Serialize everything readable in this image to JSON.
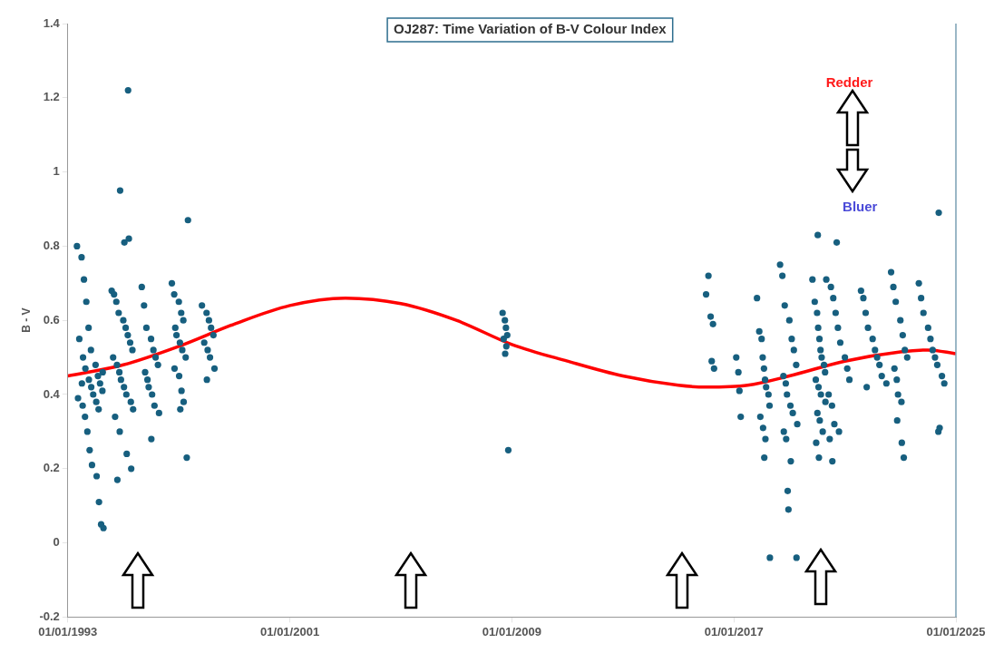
{
  "chart_data": {
    "type": "scatter",
    "title": "OJ287: Time Variation of B-V Colour Index",
    "ylabel": "B - V",
    "xlim": [
      "1993-01-01",
      "2025-01-01"
    ],
    "xticks": [
      {
        "value": "1993-01-01",
        "label": "01/01/1993"
      },
      {
        "value": "2001-01-01",
        "label": "01/01/2001"
      },
      {
        "value": "2009-01-01",
        "label": "01/01/2009"
      },
      {
        "value": "2017-01-01",
        "label": "01/01/2017"
      },
      {
        "value": "2025-01-01",
        "label": "01/01/2025"
      }
    ],
    "ylim": [
      -0.2,
      1.4
    ],
    "yticks": [
      -0.2,
      0,
      0.2,
      0.4,
      0.6,
      0.8,
      1,
      1.2,
      1.4
    ],
    "grid": false,
    "legend": false,
    "marker": "circle",
    "annotations": [
      "Redder",
      "Bluer"
    ],
    "series": [
      {
        "type": "scatter",
        "color": "#175f7f",
        "x": [
          "1993-05",
          "1993-07",
          "1993-08",
          "1993-09",
          "1993-10",
          "1993-11",
          "1994-01",
          "1994-02",
          "1994-03",
          "1994-04",
          "1993-05-15",
          "1993-07-15",
          "1993-08-15",
          "1993-09-15",
          "1993-10-15",
          "1993-11-15",
          "1994-01-15",
          "1994-02-15",
          "1994-03-15",
          "1994-04-15",
          "1993-06",
          "1993-07-20",
          "1993-08-20",
          "1993-10-05",
          "1993-11-05",
          "1993-12",
          "1994-01-10",
          "1994-02-10",
          "1994-04-05",
          "1993-07-05",
          "1994-08",
          "1994-09",
          "1994-10",
          "1994-11",
          "1995-01",
          "1995-02",
          "1995-03",
          "1995-04",
          "1995-05",
          "1994-08-20",
          "1994-10-10",
          "1994-11-10",
          "1994-12",
          "1995-01-10",
          "1995-02-10",
          "1995-04-10",
          "1995-05-10",
          "1994-09-15",
          "1994-11-15",
          "1995-02-15",
          "1995-04-15",
          "1994-10-15",
          "1995-01-15",
          "1995-03-15",
          "1995-03-05",
          "1994-11-20",
          "1995-09",
          "1995-10",
          "1995-11",
          "1996-01",
          "1996-02",
          "1996-03",
          "1996-04",
          "1995-10-15",
          "1995-11-15",
          "1995-12",
          "1996-01-15",
          "1996-02-15",
          "1996-04-15",
          "1996-01-05",
          "1996-10",
          "1996-11",
          "1997-01",
          "1997-02",
          "1997-03",
          "1996-11-15",
          "1996-12",
          "1997-01-15",
          "1997-02-15",
          "1997-04",
          "1996-11-05",
          "1997-01-05",
          "1997-02-05",
          "1997-03-05",
          "1997-01-20",
          "1997-04-15",
          "1997-05",
          "1997-11",
          "1998-01",
          "1998-02",
          "1998-03",
          "1998-04",
          "1997-12",
          "1998-01-15",
          "1998-02-15",
          "1998-04-15",
          "1998-01-05",
          "2008-09",
          "2008-10",
          "2008-10-15",
          "2008-11",
          "2008-09-15",
          "2008-10-20",
          "2008-10-05",
          "2008-11-15",
          "2016-01",
          "2016-02",
          "2016-03",
          "2016-04",
          "2016-03-15",
          "2016-04-15",
          "2017-02",
          "2017-03",
          "2017-03-15",
          "2017-04",
          "2017-11",
          "2017-12",
          "2018-01",
          "2018-01-15",
          "2018-02",
          "2018-02-15",
          "2018-03",
          "2018-04",
          "2018-04-15",
          "2017-12-15",
          "2018-01-20",
          "2018-02-20",
          "2018-02-05",
          "2018-04-20",
          "2018-09",
          "2018-10",
          "2018-11",
          "2019-01",
          "2019-02",
          "2019-03",
          "2019-04",
          "2018-10-15",
          "2018-11-15",
          "2018-12",
          "2019-01-15",
          "2019-02-15",
          "2019-04-15",
          "2018-10-20",
          "2018-11-20",
          "2019-01-20",
          "2018-12-10",
          "2018-12-20",
          "2019-04-05",
          "2019-11",
          "2019-12",
          "2020-01",
          "2020-01-15",
          "2020-02",
          "2020-02-15",
          "2020-03",
          "2020-04",
          "2020-04-15",
          "2019-12-15",
          "2020-01-20",
          "2020-02-20",
          "2020-04-20",
          "2020-01-05",
          "2020-02-05",
          "2020-03-15",
          "2020-01-10",
          "2019-12-20",
          "2020-01-25",
          "2020-05",
          "2020-07",
          "2020-08",
          "2020-09",
          "2020-10",
          "2020-11",
          "2021-01",
          "2021-02",
          "2021-03",
          "2020-06",
          "2020-07-15",
          "2020-08-15",
          "2020-10-15",
          "2020-09-15",
          "2020-07-20",
          "2020-06-15",
          "2021-08",
          "2021-09",
          "2021-10",
          "2021-11",
          "2022-01",
          "2022-02",
          "2022-03",
          "2022-04",
          "2022-05",
          "2022-07",
          "2021-10-15",
          "2022-09",
          "2022-10",
          "2022-11",
          "2023-01",
          "2023-02",
          "2023-03",
          "2023-04",
          "2022-10-15",
          "2022-11-15",
          "2022-12",
          "2023-01-15",
          "2022-11-20",
          "2023-01-20",
          "2023-02-15",
          "2023-09",
          "2023-10",
          "2023-11",
          "2024-01",
          "2024-02",
          "2024-03",
          "2024-04",
          "2024-05",
          "2024-07",
          "2024-08",
          "2024-05-15",
          "2024-06",
          "2024-05-20"
        ],
        "values": [
          0.8,
          0.77,
          0.71,
          0.65,
          0.58,
          0.52,
          0.48,
          0.45,
          0.43,
          0.41,
          0.39,
          0.37,
          0.34,
          0.3,
          0.25,
          0.21,
          0.18,
          0.11,
          0.05,
          0.04,
          0.55,
          0.5,
          0.47,
          0.44,
          0.42,
          0.4,
          0.38,
          0.36,
          0.46,
          0.43,
          0.68,
          0.67,
          0.65,
          0.62,
          0.6,
          0.58,
          0.56,
          0.54,
          0.52,
          0.5,
          0.48,
          0.46,
          0.44,
          0.42,
          0.4,
          0.38,
          0.36,
          0.34,
          0.3,
          0.24,
          0.2,
          0.17,
          0.81,
          0.82,
          1.22,
          0.95,
          0.69,
          0.64,
          0.58,
          0.55,
          0.52,
          0.5,
          0.48,
          0.46,
          0.44,
          0.42,
          0.4,
          0.37,
          0.35,
          0.28,
          0.7,
          0.67,
          0.65,
          0.62,
          0.6,
          0.58,
          0.56,
          0.54,
          0.52,
          0.5,
          0.47,
          0.45,
          0.41,
          0.38,
          0.36,
          0.23,
          0.87,
          0.64,
          0.62,
          0.6,
          0.58,
          0.56,
          0.54,
          0.52,
          0.5,
          0.47,
          0.44,
          0.62,
          0.6,
          0.58,
          0.56,
          0.55,
          0.53,
          0.51,
          0.25,
          0.67,
          0.72,
          0.61,
          0.59,
          0.49,
          0.47,
          0.5,
          0.46,
          0.41,
          0.34,
          0.66,
          0.57,
          0.55,
          0.5,
          0.47,
          0.44,
          0.42,
          0.4,
          0.37,
          0.34,
          0.31,
          0.28,
          0.23,
          -0.04,
          0.75,
          0.72,
          0.64,
          0.6,
          0.55,
          0.52,
          0.48,
          0.45,
          0.43,
          0.4,
          0.37,
          0.35,
          0.32,
          0.3,
          0.28,
          0.22,
          0.14,
          0.09,
          -0.04,
          0.71,
          0.65,
          0.62,
          0.58,
          0.55,
          0.52,
          0.5,
          0.48,
          0.46,
          0.44,
          0.42,
          0.4,
          0.38,
          0.35,
          0.33,
          0.3,
          0.83,
          0.27,
          0.23,
          0.71,
          0.69,
          0.66,
          0.62,
          0.58,
          0.54,
          0.5,
          0.47,
          0.44,
          0.4,
          0.37,
          0.32,
          0.3,
          0.81,
          0.22,
          0.28,
          0.68,
          0.66,
          0.62,
          0.58,
          0.55,
          0.52,
          0.5,
          0.48,
          0.45,
          0.43,
          0.42,
          0.73,
          0.69,
          0.65,
          0.6,
          0.56,
          0.52,
          0.5,
          0.47,
          0.44,
          0.4,
          0.38,
          0.33,
          0.27,
          0.23,
          0.7,
          0.66,
          0.62,
          0.58,
          0.55,
          0.52,
          0.5,
          0.48,
          0.45,
          0.43,
          0.3,
          0.31,
          0.89
        ]
      },
      {
        "type": "line",
        "color": "#ff0000",
        "marker": "none",
        "line_style": "solid",
        "x": [
          "1993-01",
          "1995-01",
          "1997-01",
          "1999-01",
          "2001-01",
          "2003-01",
          "2005-01",
          "2007-01",
          "2009-01",
          "2011-01",
          "2013-01",
          "2015-01",
          "2016-01",
          "2017-07",
          "2019-01",
          "2021-01",
          "2023-01",
          "2024-01",
          "2025-01"
        ],
        "values": [
          0.45,
          0.48,
          0.53,
          0.59,
          0.64,
          0.66,
          0.645,
          0.6,
          0.535,
          0.49,
          0.45,
          0.425,
          0.42,
          0.425,
          0.45,
          0.49,
          0.515,
          0.52,
          0.51
        ]
      }
    ]
  }
}
